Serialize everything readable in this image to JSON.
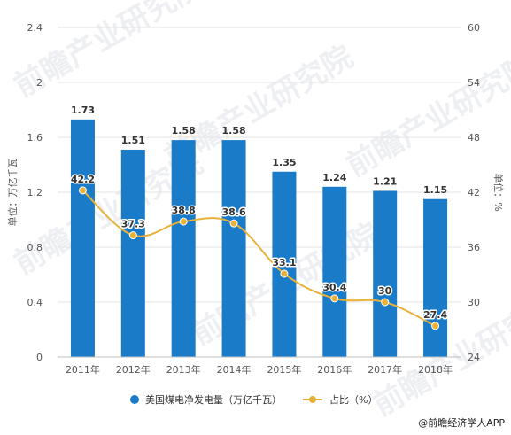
{
  "chart_data": {
    "type": "bar",
    "categories": [
      "2011年",
      "2012年",
      "2013年",
      "2014年",
      "2015年",
      "2016年",
      "2017年",
      "2018年"
    ],
    "series": [
      {
        "name": "美国煤电净发电量（万亿千瓦）",
        "type": "bar",
        "axis": "left",
        "values": [
          1.73,
          1.51,
          1.58,
          1.58,
          1.35,
          1.24,
          1.21,
          1.15
        ],
        "labels": [
          "1.73",
          "1.51",
          "1.58",
          "1.58",
          "1.35",
          "1.24",
          "1.21",
          "1.15"
        ]
      },
      {
        "name": "占比（%）",
        "type": "line",
        "axis": "right",
        "values": [
          42.2,
          37.3,
          38.8,
          38.6,
          33.1,
          30.4,
          30,
          27.4
        ],
        "labels": [
          "42.2",
          "37.3",
          "38.8",
          "38.6",
          "33.1",
          "30.4",
          "30",
          "27.4"
        ]
      }
    ],
    "ylabel": "单位：万亿千瓦",
    "y2label": "单位：%",
    "ylim": [
      0,
      2.4
    ],
    "y2lim": [
      24,
      60
    ],
    "yticks": [
      "0",
      "0.4",
      "0.8",
      "1.2",
      "1.6",
      "2",
      "2.4"
    ],
    "y2ticks": [
      "24",
      "30",
      "36",
      "42",
      "48",
      "54",
      "60"
    ],
    "grid": true,
    "legend_position": "bottom",
    "colors": {
      "bar": "#1a7bc8",
      "line": "#e8b23a",
      "grid": "#e3e3e3"
    }
  },
  "source": "@前瞻经济学人APP",
  "watermark": "前瞻产业研究院"
}
